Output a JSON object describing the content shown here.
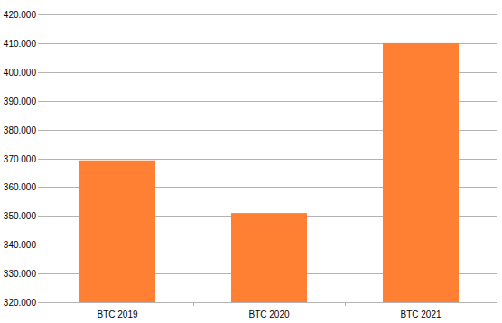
{
  "chart_data": {
    "type": "bar",
    "categories": [
      "BTC 2019",
      "BTC 2020",
      "BTC 2021"
    ],
    "values": [
      369300,
      351000,
      410000
    ],
    "color": "#ff8033",
    "ylim": [
      320000,
      420000
    ],
    "yticks": [
      {
        "value": 320000,
        "label": "320.000"
      },
      {
        "value": 330000,
        "label": "330.000"
      },
      {
        "value": 340000,
        "label": "340.000"
      },
      {
        "value": 350000,
        "label": "350.000"
      },
      {
        "value": 360000,
        "label": "360.000"
      },
      {
        "value": 370000,
        "label": "370.000"
      },
      {
        "value": 380000,
        "label": "380.000"
      },
      {
        "value": 390000,
        "label": "390.000"
      },
      {
        "value": 400000,
        "label": "400.000"
      },
      {
        "value": 410000,
        "label": "410.000"
      },
      {
        "value": 420000,
        "label": "420.000"
      }
    ],
    "grid": true
  }
}
